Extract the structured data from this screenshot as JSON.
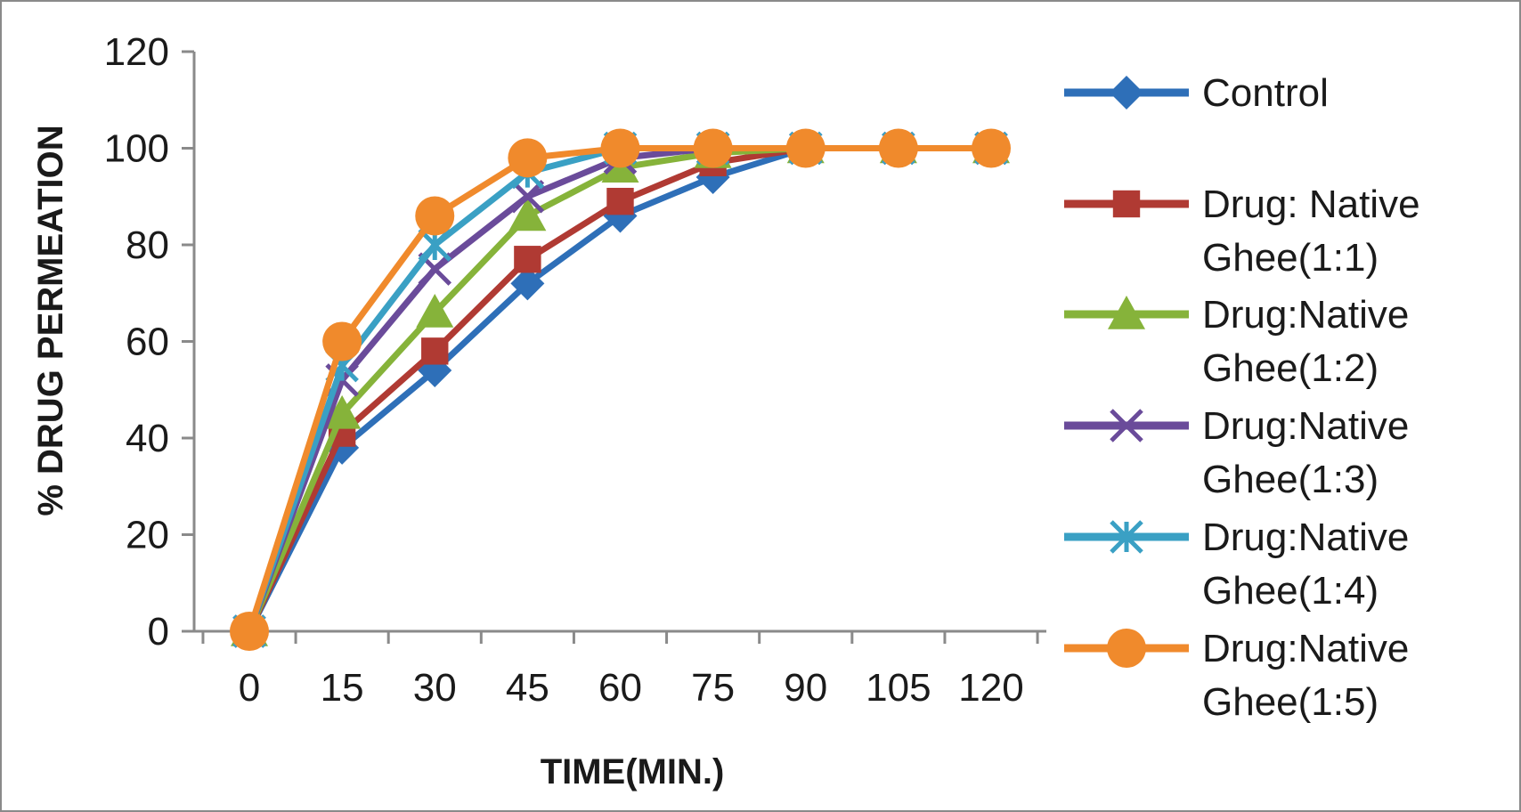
{
  "chart_data": {
    "type": "line",
    "title": "",
    "xlabel": "TIME(MIN.)",
    "ylabel": "% DRUG PERMEATION",
    "x": [
      0,
      15,
      30,
      45,
      60,
      75,
      90,
      105,
      120
    ],
    "x_tick_labels": [
      "0",
      "15",
      "30",
      "45",
      "60",
      "75",
      "90",
      "105",
      "120"
    ],
    "y_ticks": [
      0,
      20,
      40,
      60,
      80,
      100,
      120
    ],
    "y_tick_labels": [
      "0",
      "20",
      "40",
      "60",
      "80",
      "100",
      "120"
    ],
    "ylim": [
      0,
      120
    ],
    "grid": false,
    "legend_position": "right",
    "series": [
      {
        "name": "Control",
        "name_lines": [
          "Control"
        ],
        "color": "#2e6fb8",
        "marker": "diamond",
        "values": [
          0,
          38,
          54,
          72,
          86,
          94,
          100,
          100,
          100
        ]
      },
      {
        "name": "Drug: Native Ghee(1:1)",
        "name_lines": [
          "Drug: Native",
          "Ghee(1:1)"
        ],
        "color": "#b03a33",
        "marker": "square",
        "values": [
          0,
          41,
          58,
          77,
          89,
          97,
          100,
          100,
          100
        ]
      },
      {
        "name": "Drug:Native Ghee(1:2)",
        "name_lines": [
          "Drug:Native",
          "Ghee(1:2)"
        ],
        "color": "#86b33a",
        "marker": "triangle",
        "values": [
          0,
          45,
          66,
          86,
          96,
          99,
          100,
          100,
          100
        ]
      },
      {
        "name": "Drug:Native Ghee(1:3)",
        "name_lines": [
          "Drug:Native",
          "Ghee(1:3)"
        ],
        "color": "#6a4b9a",
        "marker": "x",
        "values": [
          0,
          52,
          75,
          90,
          98,
          100,
          100,
          100,
          100
        ]
      },
      {
        "name": "Drug:Native Ghee(1:4)",
        "name_lines": [
          "Drug:Native",
          "Ghee(1:4)"
        ],
        "color": "#3aa0c4",
        "marker": "star",
        "values": [
          0,
          55,
          80,
          95,
          100,
          100,
          100,
          100,
          100
        ]
      },
      {
        "name": "Drug:Native Ghee(1:5)",
        "name_lines": [
          "Drug:Native",
          "Ghee(1:5)"
        ],
        "color": "#f08a2c",
        "marker": "circle",
        "values": [
          0,
          60,
          86,
          98,
          100,
          100,
          100,
          100,
          100
        ]
      }
    ]
  }
}
